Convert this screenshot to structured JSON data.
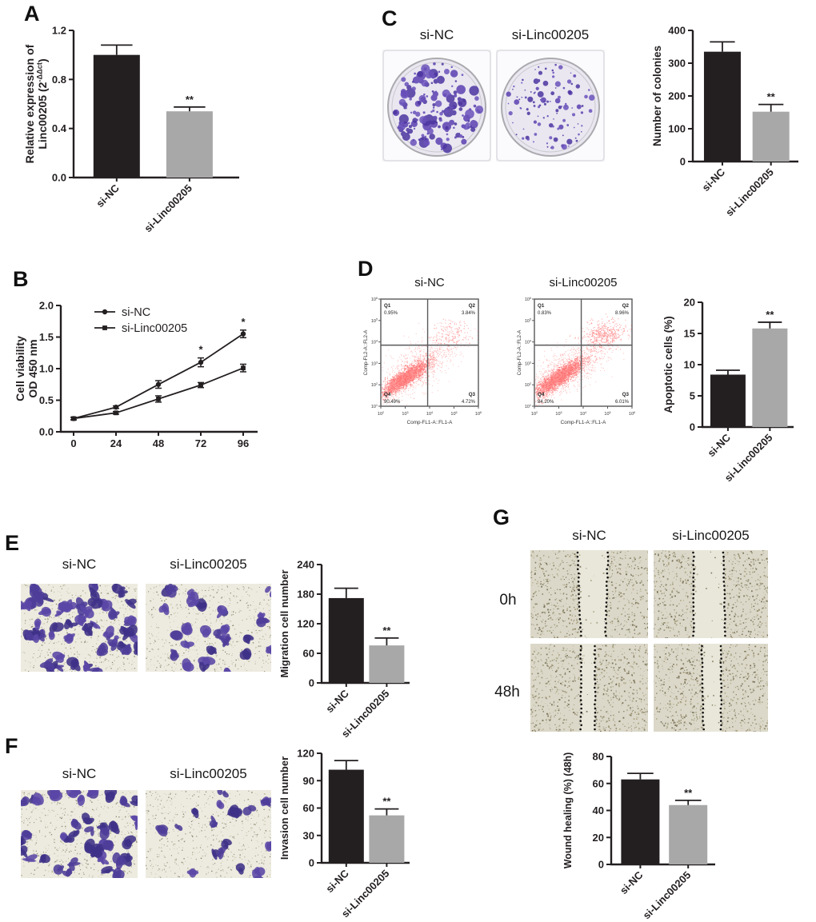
{
  "figure": {
    "groups": [
      "si-NC",
      "si-Linc00205"
    ],
    "colors": {
      "bar_dark": "#231f20",
      "bar_gray": "#a8a8a8",
      "axis": "#231f20",
      "stain_purple": "#5b40b0",
      "flow_red": "#ff1f1f"
    }
  },
  "panels": {
    "A": {
      "label": "A"
    },
    "B": {
      "label": "B"
    },
    "C": {
      "label": "C",
      "captions": [
        "si-NC",
        "si-Linc00205"
      ]
    },
    "D": {
      "label": "D"
    },
    "E": {
      "label": "E",
      "captions": [
        "si-NC",
        "si-Linc00205"
      ]
    },
    "F": {
      "label": "F",
      "captions": [
        "si-NC",
        "si-Linc00205"
      ]
    },
    "G": {
      "label": "G",
      "captions": [
        "si-NC",
        "si-Linc00205"
      ],
      "rows": [
        "0h",
        "48h"
      ]
    }
  },
  "chart_data": [
    {
      "id": "bar-a",
      "type": "bar",
      "ylabel_lines": [
        "Relative expression of",
        "Linc00205 (2^{-ΔΔct})"
      ],
      "categories": [
        "si-NC",
        "si-Linc00205"
      ],
      "values": [
        1.0,
        0.54
      ],
      "errors": [
        0.08,
        0.035
      ],
      "sig": [
        "",
        "**"
      ],
      "ylim": [
        0,
        1.2
      ],
      "yticks": [
        0,
        0.4,
        0.8,
        1.2
      ],
      "ytick_labels": [
        "0.0",
        "0.4",
        "0.8",
        "1.2"
      ]
    },
    {
      "id": "line-b",
      "type": "line",
      "ylabel_lines": [
        "Cell viability",
        "OD 450 nm"
      ],
      "x": [
        0,
        24,
        48,
        72,
        96
      ],
      "xtick_labels": [
        "0",
        "24",
        "48",
        "72",
        "96"
      ],
      "series": [
        {
          "name": "si-NC",
          "marker": "circle",
          "values": [
            0.21,
            0.39,
            0.75,
            1.1,
            1.55
          ],
          "errors": [
            0.02,
            0.02,
            0.06,
            0.07,
            0.06
          ],
          "sig": [
            "",
            "",
            "",
            "*",
            "*"
          ]
        },
        {
          "name": "si-Linc00205",
          "marker": "square",
          "values": [
            0.21,
            0.3,
            0.52,
            0.74,
            1.01
          ],
          "errors": [
            0.02,
            0.02,
            0.05,
            0.04,
            0.06
          ],
          "sig": [
            "",
            "",
            "",
            "",
            ""
          ]
        }
      ],
      "ylim": [
        0,
        2.0
      ],
      "yticks": [
        0,
        0.5,
        1.0,
        1.5,
        2.0
      ],
      "ytick_labels": [
        "0.0",
        "0.5",
        "1.0",
        "1.5",
        "2.0"
      ],
      "legend_position": "top-left"
    },
    {
      "id": "bar-c",
      "type": "bar",
      "ylabel_lines": [
        "Number of colonies"
      ],
      "categories": [
        "si-NC",
        "si-Linc00205"
      ],
      "values": [
        335,
        152
      ],
      "errors": [
        30,
        22
      ],
      "sig": [
        "",
        "**"
      ],
      "ylim": [
        0,
        400
      ],
      "yticks": [
        0,
        100,
        200,
        300,
        400
      ],
      "ytick_labels": [
        "0",
        "100",
        "200",
        "300",
        "400"
      ]
    },
    {
      "id": "flow-nc",
      "type": "scatter",
      "title": "si-NC",
      "xlabel": "Comp-FL1-A::FL1-A",
      "ylabel": "Comp-FL2-A::FL2-A",
      "x_decades": [
        2,
        6
      ],
      "y_decades": [
        1,
        6
      ],
      "quadrants": [
        {
          "name": "Q1",
          "pct": "0.95%"
        },
        {
          "name": "Q2",
          "pct": "3.84%"
        },
        {
          "name": "Q3",
          "pct": "4.72%"
        },
        {
          "name": "Q4",
          "pct": "90.49%"
        }
      ]
    },
    {
      "id": "flow-si",
      "type": "scatter",
      "title": "si-Linc00205",
      "xlabel": "Comp-FL1-A::FL1-A",
      "ylabel": "Comp-FL2-A::FL2-A",
      "x_decades": [
        2,
        6
      ],
      "y_decades": [
        1,
        6
      ],
      "quadrants": [
        {
          "name": "Q1",
          "pct": "0.83%"
        },
        {
          "name": "Q2",
          "pct": "8.96%"
        },
        {
          "name": "Q3",
          "pct": "6.01%"
        },
        {
          "name": "Q4",
          "pct": "84.20%"
        }
      ]
    },
    {
      "id": "bar-d",
      "type": "bar",
      "ylabel_lines": [
        "Apoptotic cells (%)"
      ],
      "categories": [
        "si-NC",
        "si-Linc00205"
      ],
      "values": [
        8.4,
        15.8
      ],
      "errors": [
        0.7,
        1.0
      ],
      "sig": [
        "",
        "**"
      ],
      "ylim": [
        0,
        20
      ],
      "yticks": [
        0,
        5,
        10,
        15,
        20
      ],
      "ytick_labels": [
        "0",
        "5",
        "10",
        "15",
        "20"
      ]
    },
    {
      "id": "bar-e",
      "type": "bar",
      "ylabel_lines": [
        "Migration cell number"
      ],
      "categories": [
        "si-NC",
        "si-Linc00205"
      ],
      "values": [
        172,
        76
      ],
      "errors": [
        20,
        15
      ],
      "sig": [
        "",
        "**"
      ],
      "ylim": [
        0,
        240
      ],
      "yticks": [
        0,
        60,
        120,
        180,
        240
      ],
      "ytick_labels": [
        "0",
        "60",
        "120",
        "180",
        "240"
      ]
    },
    {
      "id": "bar-f",
      "type": "bar",
      "ylabel_lines": [
        "Invasion cell number"
      ],
      "categories": [
        "si-NC",
        "si-Linc00205"
      ],
      "values": [
        102,
        52
      ],
      "errors": [
        10,
        7
      ],
      "sig": [
        "",
        "**"
      ],
      "ylim": [
        0,
        120
      ],
      "yticks": [
        0,
        30,
        60,
        90,
        120
      ],
      "ytick_labels": [
        "0",
        "30",
        "60",
        "90",
        "120"
      ]
    },
    {
      "id": "bar-g",
      "type": "bar",
      "ylabel_lines": [
        "Wound healing (%) (48h)"
      ],
      "categories": [
        "si-NC",
        "si-Linc00205"
      ],
      "values": [
        63,
        44
      ],
      "errors": [
        4.5,
        3.5
      ],
      "sig": [
        "",
        "**"
      ],
      "ylim": [
        0,
        80
      ],
      "yticks": [
        0,
        20,
        40,
        60,
        80
      ],
      "ytick_labels": [
        "0",
        "20",
        "40",
        "60",
        "80"
      ]
    }
  ]
}
